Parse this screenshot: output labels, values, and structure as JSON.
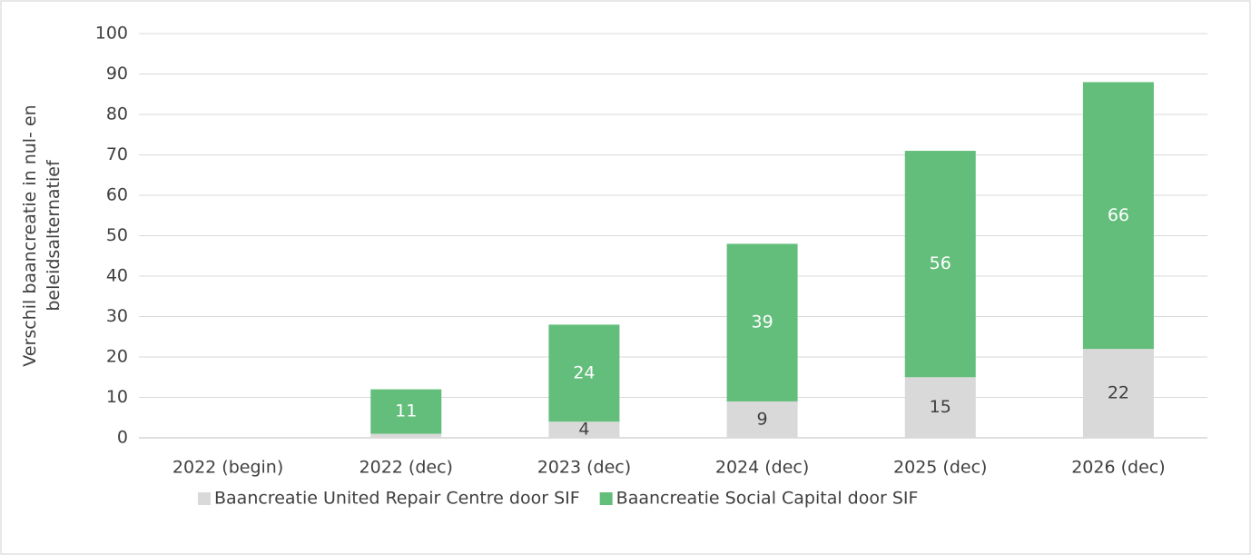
{
  "chart_data": {
    "type": "stacked_bar",
    "y_label": [
      "Verschil baancreatie in nul- en",
      "beleidsalternatief"
    ],
    "categories": [
      "2022 (begin)",
      "2022 (dec)",
      "2023 (dec)",
      "2024 (dec)",
      "2025 (dec)",
      "2026 (dec)"
    ],
    "series": [
      {
        "name": "Baancreatie United Repair Centre door SIF",
        "color": "#d9d9d9",
        "label_color": "#404040",
        "values": [
          0,
          1,
          4,
          9,
          15,
          22
        ]
      },
      {
        "name": "Baancreatie Social Capital door SIF",
        "color": "#63be7b",
        "label_color": "#ffffff",
        "values": [
          0,
          11,
          24,
          39,
          56,
          66
        ]
      }
    ],
    "ylim": [
      0,
      100
    ],
    "yticks": [
      0,
      10,
      20,
      30,
      40,
      50,
      60,
      70,
      80,
      90,
      100
    ],
    "grid": true,
    "legend": "bottom"
  }
}
